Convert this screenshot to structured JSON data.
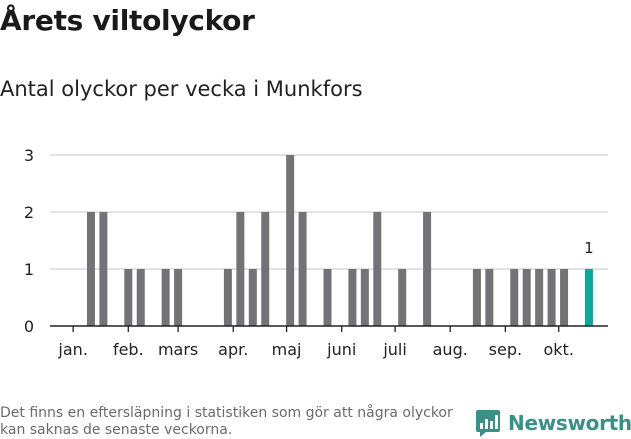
{
  "header": {
    "title": "Årets viltolyckor",
    "subtitle": "Antal olyckor per vecka i Munkfors"
  },
  "footer": {
    "note": "Det finns en eftersläpning i statistiken som gör att några olyckor kan saknas de senaste veckorna.",
    "brand": "Newsworthy"
  },
  "colors": {
    "bar": "#737276",
    "highlight": "#13a59b",
    "grid": "#d9d9d9",
    "axis": "#222222",
    "brand": "#3b8f86"
  },
  "chart_data": {
    "type": "bar",
    "ylim": [
      0,
      3
    ],
    "yticks": [
      0,
      1,
      2,
      3
    ],
    "grid": true,
    "xlabel": "",
    "ylabel": "",
    "x": [
      "2021-01-04",
      "2021-01-11",
      "2021-01-18",
      "2021-01-25",
      "2021-02-01",
      "2021-02-08",
      "2021-02-15",
      "2021-02-22",
      "2021-03-01",
      "2021-03-08",
      "2021-03-15",
      "2021-03-22",
      "2021-03-29",
      "2021-04-05",
      "2021-04-12",
      "2021-04-19",
      "2021-04-26",
      "2021-05-03",
      "2021-05-10",
      "2021-05-17",
      "2021-05-24",
      "2021-05-31",
      "2021-06-07",
      "2021-06-14",
      "2021-06-21",
      "2021-06-28",
      "2021-07-05",
      "2021-07-12",
      "2021-07-19",
      "2021-07-26",
      "2021-08-02",
      "2021-08-09",
      "2021-08-16",
      "2021-08-23",
      "2021-08-30",
      "2021-09-06",
      "2021-09-13",
      "2021-09-20",
      "2021-09-27",
      "2021-10-04",
      "2021-10-11",
      "2021-10-18"
    ],
    "values": [
      0,
      2,
      2,
      0,
      1,
      1,
      0,
      1,
      1,
      0,
      0,
      0,
      1,
      2,
      1,
      2,
      0,
      3,
      2,
      0,
      1,
      0,
      1,
      1,
      2,
      0,
      1,
      0,
      2,
      0,
      0,
      0,
      1,
      1,
      0,
      1,
      1,
      1,
      1,
      1,
      0,
      1
    ],
    "highlight_index": 41,
    "data_labels": [
      {
        "index": 41,
        "text": "1"
      }
    ],
    "month_labels": [
      {
        "text": "jan.",
        "date": "2021-01-01"
      },
      {
        "text": "feb.",
        "date": "2021-02-01"
      },
      {
        "text": "mars",
        "date": "2021-03-01"
      },
      {
        "text": "apr.",
        "date": "2021-04-01"
      },
      {
        "text": "maj",
        "date": "2021-05-01"
      },
      {
        "text": "juni",
        "date": "2021-06-01"
      },
      {
        "text": "juli",
        "date": "2021-07-01"
      },
      {
        "text": "aug.",
        "date": "2021-08-01"
      },
      {
        "text": "sep.",
        "date": "2021-09-01"
      },
      {
        "text": "okt.",
        "date": "2021-10-01"
      }
    ]
  }
}
